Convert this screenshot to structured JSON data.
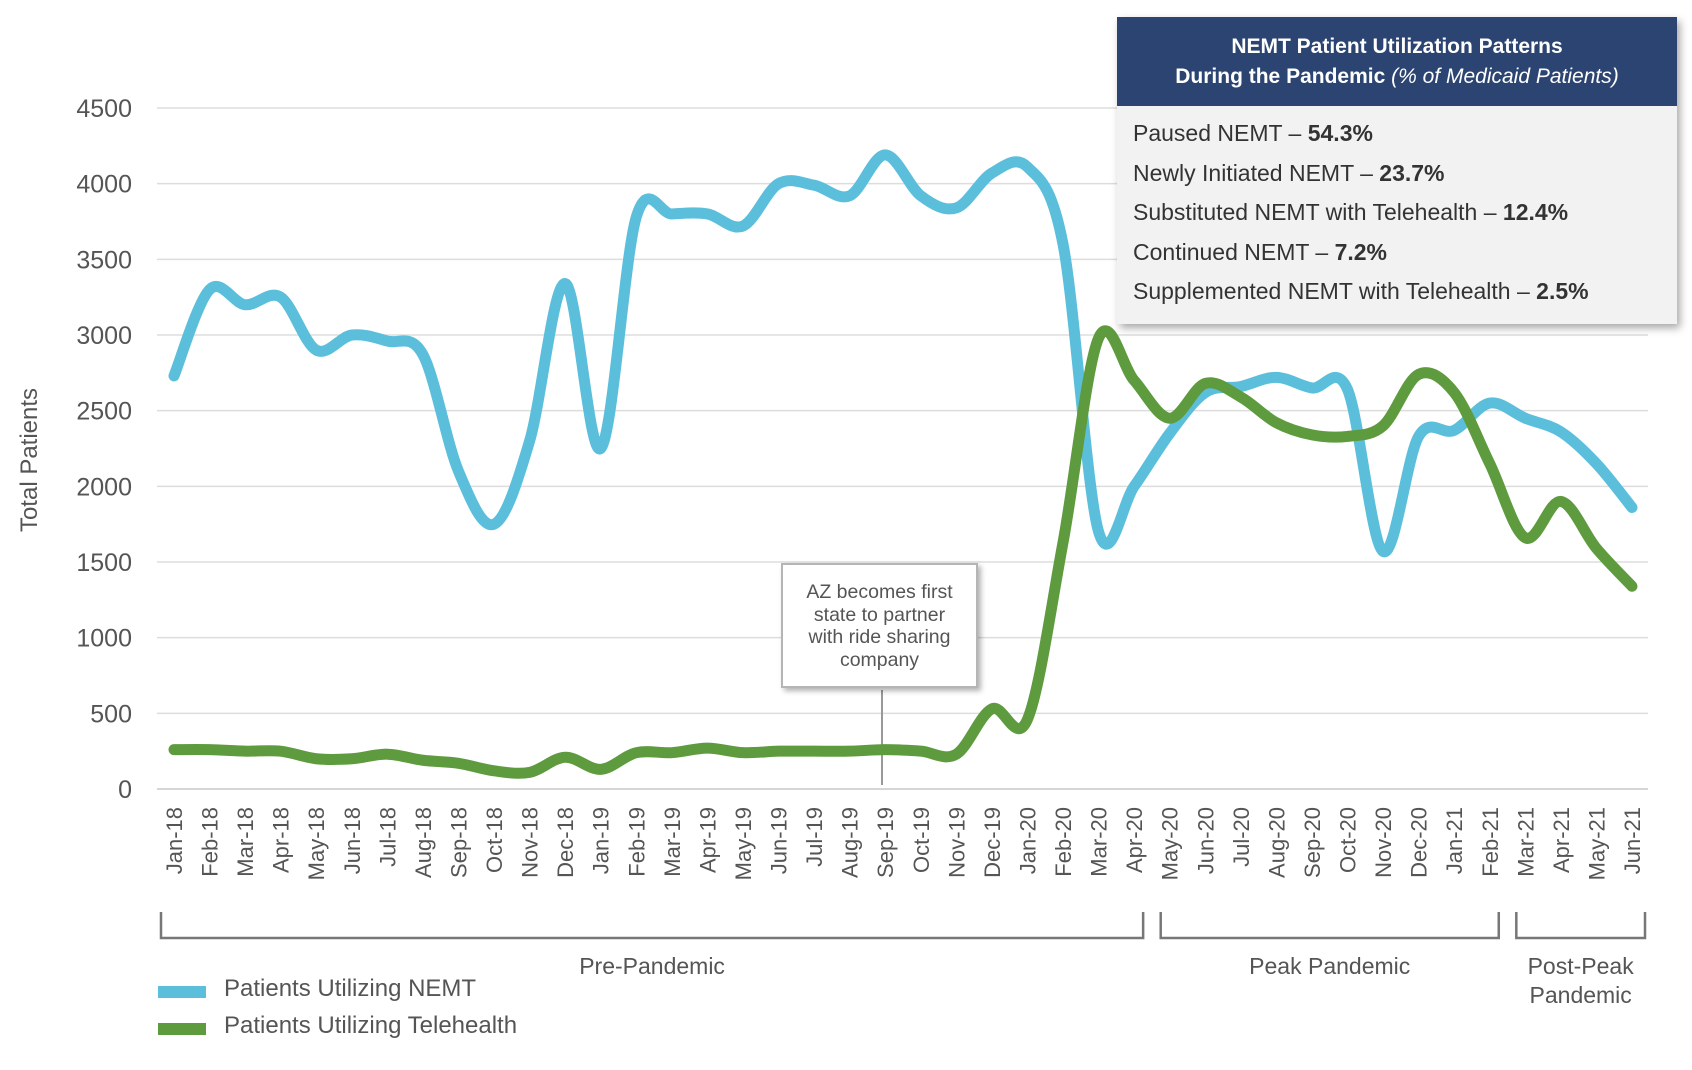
{
  "chart_data": {
    "type": "line",
    "ylabel": "Total Patients",
    "xlabel": "",
    "ylim": [
      0,
      4500
    ],
    "yticks": [
      0,
      500,
      1000,
      1500,
      2000,
      2500,
      3000,
      3500,
      4000,
      4500
    ],
    "grid": true,
    "categories": [
      "Jan-18",
      "Feb-18",
      "Mar-18",
      "Apr-18",
      "May-18",
      "Jun-18",
      "Jul-18",
      "Aug-18",
      "Sep-18",
      "Oct-18",
      "Nov-18",
      "Dec-18",
      "Jan-19",
      "Feb-19",
      "Mar-19",
      "Apr-19",
      "May-19",
      "Jun-19",
      "Jul-19",
      "Aug-19",
      "Sep-19",
      "Oct-19",
      "Nov-19",
      "Dec-19",
      "Jan-20",
      "Feb-20",
      "Mar-20",
      "Apr-20",
      "May-20",
      "Jun-20",
      "Jul-20",
      "Aug-20",
      "Sep-20",
      "Oct-20",
      "Nov-20",
      "Dec-20",
      "Jan-21",
      "Feb-21",
      "Mar-21",
      "Apr-21",
      "May-21",
      "Jun-21"
    ],
    "series": [
      {
        "name": "Patients Utilizing NEMT",
        "color": "#5bbfdc",
        "values": [
          2730,
          3300,
          3200,
          3250,
          2900,
          3000,
          2960,
          2870,
          2100,
          1750,
          2300,
          3340,
          2250,
          3780,
          3800,
          3800,
          3720,
          4000,
          3990,
          3920,
          4190,
          3920,
          3840,
          4070,
          4110,
          3600,
          1700,
          2000,
          2350,
          2620,
          2660,
          2720,
          2650,
          2640,
          1570,
          2330,
          2370,
          2550,
          2450,
          2360,
          2150,
          1860
        ]
      },
      {
        "name": "Patients Utilizing Telehealth",
        "color": "#5e9b3e",
        "values": [
          260,
          260,
          250,
          250,
          200,
          200,
          230,
          190,
          170,
          120,
          110,
          210,
          130,
          240,
          240,
          270,
          240,
          250,
          250,
          250,
          260,
          250,
          230,
          530,
          460,
          1630,
          2980,
          2700,
          2450,
          2680,
          2590,
          2420,
          2340,
          2330,
          2400,
          2740,
          2620,
          2150,
          1660,
          1900,
          1590,
          1340
        ]
      }
    ],
    "legend": "bottom-left",
    "periods": [
      {
        "label": "Pre-Pandemic",
        "start": "Jan-18",
        "end": "Apr-20"
      },
      {
        "label": "Peak Pandemic",
        "start": "May-20",
        "end": "Feb-21"
      },
      {
        "label": "Post-Peak Pandemic",
        "start": "Mar-21",
        "end": "Jun-21",
        "label_lines": [
          "Post-Peak",
          "Pandemic"
        ]
      }
    ],
    "annotation": {
      "at": "Sep-19",
      "text_lines": [
        "AZ becomes first",
        "state to partner",
        "with ride sharing",
        "company"
      ]
    }
  },
  "info_box": {
    "title_line1": "NEMT Patient Utilization Patterns",
    "title_line2": "During the Pandemic",
    "title_sub": "(% of Medicaid Patients)",
    "items": [
      {
        "label": "Paused NEMT",
        "value": "54.3%"
      },
      {
        "label": "Newly Initiated NEMT",
        "value": "23.7%"
      },
      {
        "label": "Substituted NEMT with Telehealth",
        "value": "12.4%"
      },
      {
        "label": "Continued NEMT",
        "value": "7.2%"
      },
      {
        "label": "Supplemented NEMT with Telehealth",
        "value": "2.5%"
      }
    ]
  }
}
